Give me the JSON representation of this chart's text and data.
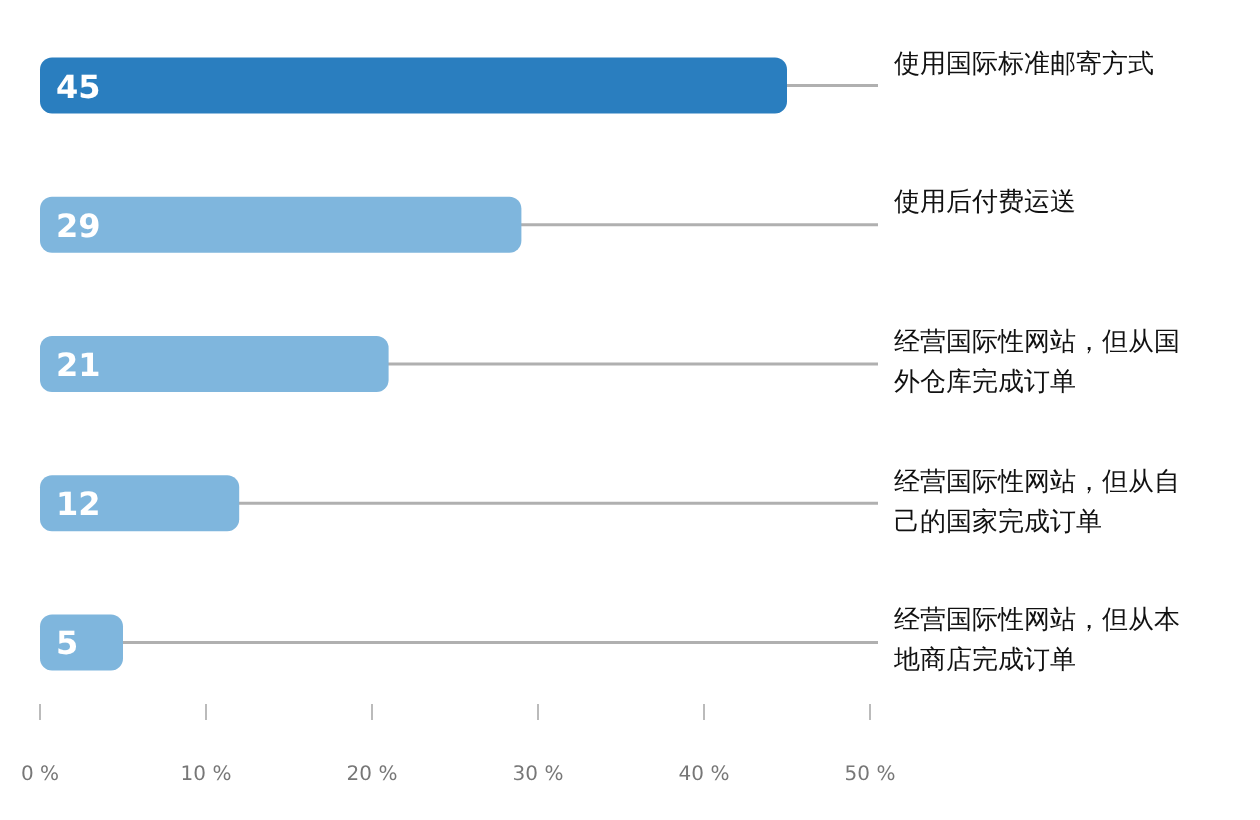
{
  "chart_data": {
    "type": "bar",
    "orientation": "horizontal",
    "categories": [
      "使用国际标准邮寄方式",
      "使用后付费运送",
      "经营国际性网站，但从国外仓库完成订单",
      "经营国际性网站，但从自己的国家完成订单",
      "经营国际性网站，但从本地商店完成订单"
    ],
    "values": [
      45,
      29,
      21,
      12,
      5
    ],
    "colors": [
      "#2a7ebf",
      "#7fb6dd",
      "#7fb6dd",
      "#7fb6dd",
      "#7fb6dd"
    ],
    "xlim": [
      0,
      50
    ],
    "xticks": [
      {
        "value": 0,
        "label": "0 %"
      },
      {
        "value": 10,
        "label": "10 %"
      },
      {
        "value": 20,
        "label": "20 %"
      },
      {
        "value": 30,
        "label": "30 %"
      },
      {
        "value": 40,
        "label": "40 %"
      },
      {
        "value": 50,
        "label": "50 %"
      }
    ],
    "data_labels": true,
    "grid": false
  }
}
